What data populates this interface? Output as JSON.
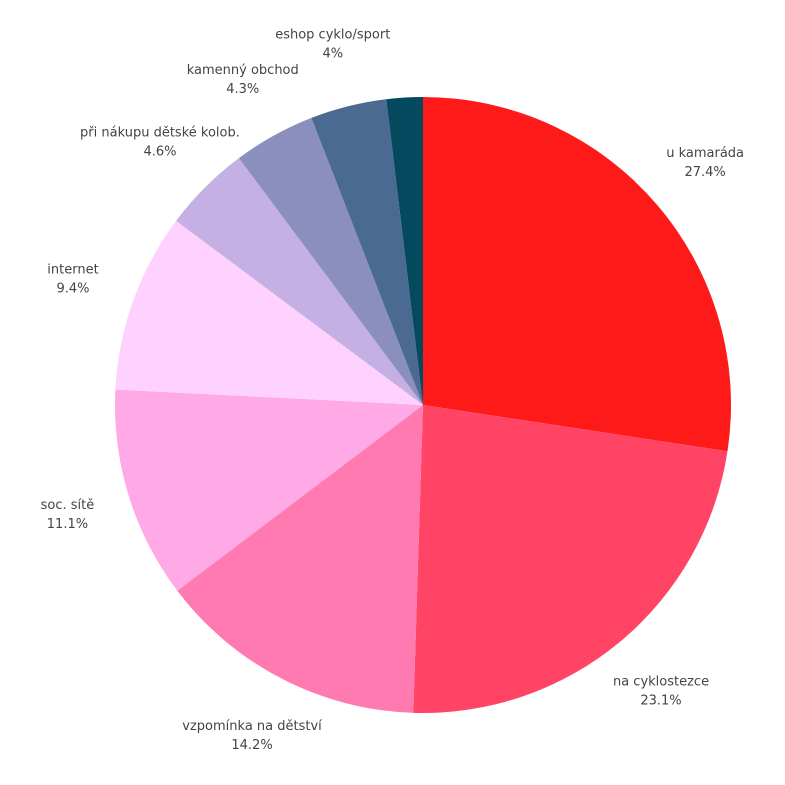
{
  "chart_data": {
    "type": "pie",
    "categories": [
      "u kamaráda",
      "na cyklostezce",
      "vzpomínka na dětství",
      "soc. sítě",
      "internet",
      "při nákupu dětské kolob.",
      "kamenný obchod",
      "eshop cyklo/sport",
      null
    ],
    "values": [
      27.4,
      23.1,
      14.2,
      11.1,
      9.4,
      4.6,
      4.3,
      4,
      1.9
    ],
    "value_labels": [
      "27.4%",
      "23.1%",
      "14.2%",
      "11.1%",
      "9.4%",
      "4.6%",
      "4.3%",
      "4%",
      null
    ],
    "colors": [
      "#ff1a1a",
      "#ff4466",
      "#ff7ab0",
      "#ffaae6",
      "#ffd1ff",
      "#c4b0e2",
      "#8a8fbd",
      "#4a6a92",
      "#05495e"
    ]
  }
}
